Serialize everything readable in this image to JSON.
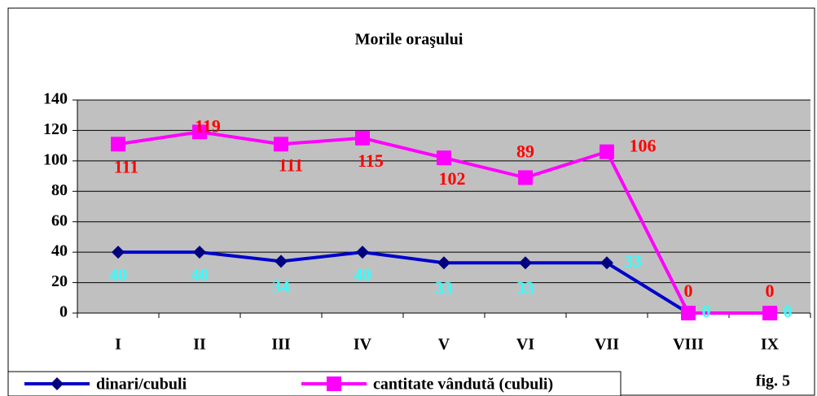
{
  "chart_data": {
    "type": "line",
    "title": "Morile oraşului",
    "categories": [
      "I",
      "II",
      "III",
      "IV",
      "V",
      "VI",
      "VII",
      "VIII",
      "IX"
    ],
    "series": [
      {
        "name": "dinari/cubuli",
        "color": "#0000cc",
        "marker_color": "#000080",
        "label_color": "#33ffff",
        "marker": "diamond",
        "values": [
          40,
          40,
          34,
          40,
          33,
          33,
          33,
          0,
          0
        ]
      },
      {
        "name": "cantitate vândută (cubuli)",
        "color": "#ff00ff",
        "marker_color": "#ff00ff",
        "label_color": "#ff0000",
        "marker": "square",
        "values": [
          111,
          119,
          111,
          115,
          102,
          89,
          106,
          0,
          0
        ]
      }
    ],
    "ylim": [
      0,
      140
    ],
    "yticks": [
      0,
      20,
      40,
      60,
      80,
      100,
      120,
      140
    ],
    "grid": true,
    "note": "fig. 5"
  }
}
